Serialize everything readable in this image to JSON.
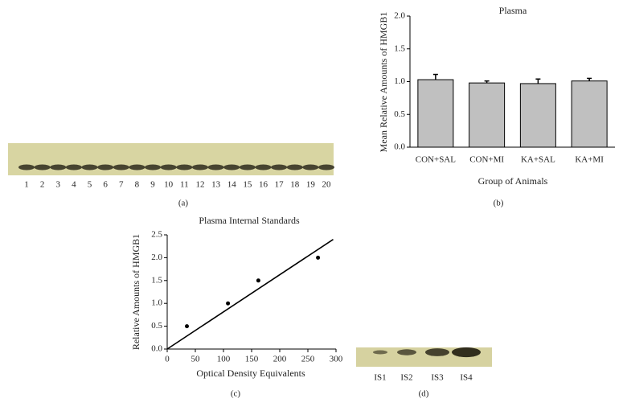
{
  "chart_data": [
    {
      "type": "bar",
      "title": "Plasma",
      "xlabel": "Group of Animals",
      "ylabel": "Mean Relative Amounts of HMGB1",
      "categories": [
        "CON+SAL",
        "CON+MI",
        "KA+SAL",
        "KA+MI"
      ],
      "values": [
        1.03,
        0.98,
        0.97,
        1.01
      ],
      "errors": [
        0.08,
        0.03,
        0.07,
        0.04
      ],
      "color": "#c0c0c0",
      "ylim": [
        0,
        2
      ],
      "yticks": [
        {
          "value": 0,
          "label": "0.0"
        },
        {
          "value": 0.5,
          "label": "0.5"
        },
        {
          "value": 1,
          "label": "1.0"
        },
        {
          "value": 1.5,
          "label": "1.5"
        },
        {
          "value": 2,
          "label": "2.0"
        }
      ],
      "caption": "(b)"
    },
    {
      "type": "scatter",
      "title": "Plasma Internal Standards",
      "xlabel": "Optical Density Equivalents",
      "ylabel": "Relative Amounts of HMGB1",
      "x": [
        35,
        108,
        162,
        268
      ],
      "values": [
        0.5,
        1.0,
        1.5,
        2.0
      ],
      "color": "#000000",
      "trend": {
        "x": [
          0,
          295
        ],
        "values": [
          0,
          2.4
        ]
      },
      "xlim": [
        0,
        300
      ],
      "xticks": [
        0,
        50,
        100,
        150,
        200,
        250,
        300
      ],
      "ylim": [
        0,
        2.5
      ],
      "yticks": [
        {
          "value": 0,
          "label": "0.0"
        },
        {
          "value": 0.5,
          "label": "0.5"
        },
        {
          "value": 1,
          "label": "1.0"
        },
        {
          "value": 1.5,
          "label": "1.5"
        },
        {
          "value": 2,
          "label": "2.0"
        },
        {
          "value": 2.5,
          "label": "2.5"
        }
      ],
      "caption": "(c)"
    }
  ],
  "blot_a": {
    "lanes": [
      "1",
      "2",
      "3",
      "4",
      "5",
      "6",
      "7",
      "8",
      "9",
      "10",
      "11",
      "12",
      "13",
      "14",
      "15",
      "16",
      "17",
      "18",
      "19",
      "20"
    ],
    "caption": "(a)"
  },
  "blot_d": {
    "lanes": [
      "IS1",
      "IS2",
      "IS3",
      "IS4"
    ],
    "caption": "(d)"
  }
}
